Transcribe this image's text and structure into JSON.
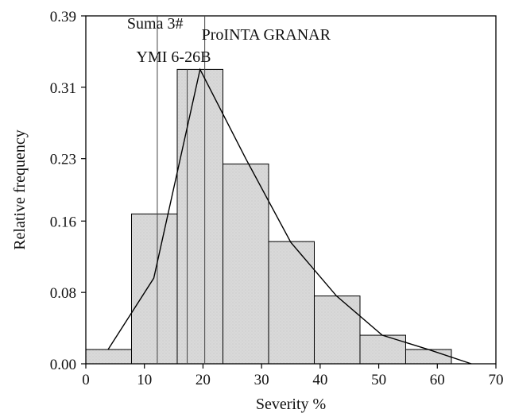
{
  "chart_data": {
    "type": "bar",
    "xlabel": "Severity %",
    "ylabel": "Relative frequency",
    "xlim": [
      0,
      70
    ],
    "ylim": [
      0,
      0.39
    ],
    "x_ticks": [
      0,
      10,
      20,
      30,
      40,
      50,
      60,
      70
    ],
    "y_ticks": [
      "0.00",
      "0.08",
      "0.16",
      "0.23",
      "0.31",
      "0.39"
    ],
    "bins": [
      {
        "start": 0,
        "end": 7.8,
        "value": 0.016
      },
      {
        "start": 7.8,
        "end": 15.6,
        "value": 0.168
      },
      {
        "start": 15.6,
        "end": 23.4,
        "value": 0.33
      },
      {
        "start": 23.4,
        "end": 31.2,
        "value": 0.224
      },
      {
        "start": 31.2,
        "end": 39.0,
        "value": 0.137
      },
      {
        "start": 39.0,
        "end": 46.8,
        "value": 0.076
      },
      {
        "start": 46.8,
        "end": 54.6,
        "value": 0.032
      },
      {
        "start": 54.6,
        "end": 62.4,
        "value": 0.016
      }
    ],
    "line": {
      "x": [
        3.8,
        11.6,
        19.5,
        27.3,
        35.0,
        42.8,
        50.6,
        58.5,
        65.8
      ],
      "y": [
        0.016,
        0.096,
        0.33,
        0.23,
        0.136,
        0.076,
        0.032,
        0.016,
        0.0
      ]
    },
    "markers": [
      {
        "label": "Suma 3#",
        "x": 12.2,
        "y": 0.39
      },
      {
        "label": "YMI 6-26B",
        "x": 17.3,
        "y": 0.33
      },
      {
        "label": "ProINTA GRANAR",
        "x": 20.3,
        "y": 0.39
      }
    ],
    "grid": false,
    "bar_color": "#d9d9d9",
    "line_color": "#000000"
  }
}
